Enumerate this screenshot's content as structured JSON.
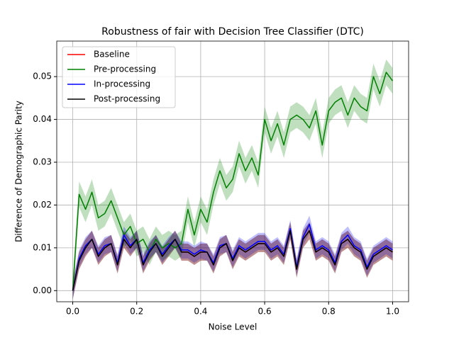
{
  "chart_data": {
    "type": "line",
    "title": "Robustness of fair with Decision Tree Classifier (DTC)",
    "xlabel": "Noise Level",
    "ylabel": "Difference of Demographic Parity",
    "x": [
      0,
      0.02,
      0.04,
      0.06,
      0.08,
      0.1,
      0.12,
      0.14,
      0.16,
      0.18,
      0.2,
      0.22,
      0.24,
      0.26,
      0.28,
      0.3,
      0.32,
      0.34,
      0.36,
      0.38,
      0.4,
      0.42,
      0.44,
      0.46,
      0.48,
      0.5,
      0.52,
      0.54,
      0.56,
      0.58,
      0.6,
      0.62,
      0.64,
      0.66,
      0.68,
      0.7,
      0.72,
      0.74,
      0.76,
      0.78,
      0.8,
      0.82,
      0.84,
      0.86,
      0.88,
      0.9,
      0.92,
      0.94,
      0.96,
      0.98,
      1.0
    ],
    "series": [
      {
        "name": "Baseline",
        "color": "red",
        "error": 0.002,
        "values": [
          0,
          0.007,
          0.01,
          0.012,
          0.008,
          0.01,
          0.011,
          0.006,
          0.012,
          0.01,
          0.012,
          0.006,
          0.009,
          0.011,
          0.008,
          0.01,
          0.012,
          0.009,
          0.009,
          0.008,
          0.009,
          0.009,
          0.006,
          0.01,
          0.011,
          0.007,
          0.01,
          0.009,
          0.01,
          0.011,
          0.011,
          0.009,
          0.01,
          0.008,
          0.014,
          0.005,
          0.012,
          0.014,
          0.009,
          0.01,
          0.009,
          0.006,
          0.011,
          0.012,
          0.01,
          0.009,
          0.005,
          0.008,
          0.009,
          0.01,
          0.009
        ]
      },
      {
        "name": "Pre-processing",
        "color": "green",
        "error": 0.003,
        "values": [
          0,
          0.0225,
          0.019,
          0.023,
          0.017,
          0.018,
          0.021,
          0.017,
          0.013,
          0.015,
          0.011,
          0.012,
          0.009,
          0.012,
          0.01,
          0.011,
          0.01,
          0.011,
          0.019,
          0.013,
          0.019,
          0.016,
          0.023,
          0.028,
          0.024,
          0.026,
          0.032,
          0.028,
          0.031,
          0.027,
          0.04,
          0.035,
          0.039,
          0.034,
          0.04,
          0.041,
          0.04,
          0.038,
          0.042,
          0.034,
          0.042,
          0.044,
          0.045,
          0.041,
          0.045,
          0.043,
          0.042,
          0.05,
          0.046,
          0.051,
          0.049
        ]
      },
      {
        "name": "In-processing",
        "color": "blue",
        "error": 0.002,
        "values": [
          0,
          0.0075,
          0.0105,
          0.012,
          0.0085,
          0.0105,
          0.011,
          0.0065,
          0.013,
          0.0105,
          0.012,
          0.0065,
          0.0095,
          0.011,
          0.0085,
          0.0105,
          0.012,
          0.0095,
          0.0095,
          0.0085,
          0.0095,
          0.009,
          0.0065,
          0.0105,
          0.011,
          0.0075,
          0.0105,
          0.0095,
          0.0105,
          0.0115,
          0.0115,
          0.0095,
          0.0105,
          0.0085,
          0.0145,
          0.0055,
          0.0125,
          0.0155,
          0.0095,
          0.0105,
          0.0095,
          0.0065,
          0.0115,
          0.013,
          0.0105,
          0.0095,
          0.0055,
          0.0085,
          0.0095,
          0.0105,
          0.0095
        ]
      },
      {
        "name": "Post-processing",
        "color": "black",
        "error": 0.002,
        "values": [
          0,
          0.007,
          0.01,
          0.012,
          0.008,
          0.01,
          0.011,
          0.006,
          0.012,
          0.01,
          0.012,
          0.006,
          0.009,
          0.011,
          0.008,
          0.01,
          0.012,
          0.009,
          0.009,
          0.008,
          0.009,
          0.009,
          0.006,
          0.01,
          0.011,
          0.007,
          0.01,
          0.009,
          0.01,
          0.011,
          0.011,
          0.009,
          0.01,
          0.008,
          0.014,
          0.005,
          0.012,
          0.014,
          0.009,
          0.01,
          0.009,
          0.006,
          0.011,
          0.012,
          0.01,
          0.009,
          0.005,
          0.008,
          0.009,
          0.01,
          0.009
        ]
      }
    ],
    "xlim": [
      -0.05,
      1.05
    ],
    "xticks": [
      {
        "value": 0,
        "label": "0.0"
      },
      {
        "value": 0.2,
        "label": "0.2"
      },
      {
        "value": 0.4,
        "label": "0.4"
      },
      {
        "value": 0.6,
        "label": "0.6"
      },
      {
        "value": 0.8,
        "label": "0.8"
      },
      {
        "value": 1,
        "label": "1.0"
      }
    ],
    "ylim": [
      -0.0026,
      0.0583
    ],
    "yticks": [
      {
        "value": 0,
        "label": "0.00"
      },
      {
        "value": 0.01,
        "label": "0.01"
      },
      {
        "value": 0.02,
        "label": "0.02"
      },
      {
        "value": 0.03,
        "label": "0.03"
      },
      {
        "value": 0.04,
        "label": "0.04"
      },
      {
        "value": 0.05,
        "label": "0.05"
      }
    ],
    "grid": true,
    "legend": "upper-left"
  }
}
